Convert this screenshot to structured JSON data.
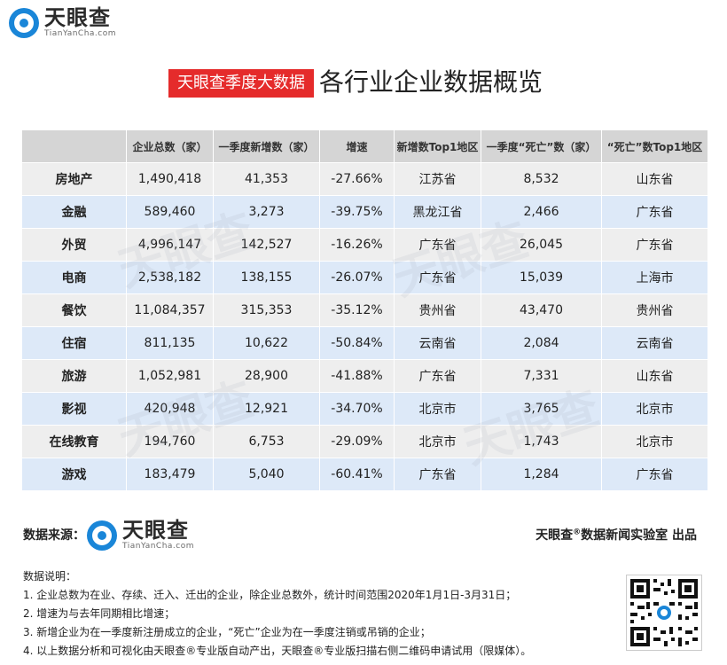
{
  "brand": {
    "name": "天眼查",
    "sub": "TianYanCha.com"
  },
  "title": {
    "badge": "天眼查季度大数据",
    "main": "各行业企业数据概览"
  },
  "table": {
    "headers": [
      "",
      "企业总数（家）",
      "一季度新增数（家）",
      "增速",
      "新增数Top1地区",
      "一季度“死亡”数（家）",
      "“死亡”数Top1地区"
    ],
    "rows": [
      [
        "房地产",
        "1,490,418",
        "41,353",
        "-27.66%",
        "江苏省",
        "8,532",
        "山东省"
      ],
      [
        "金融",
        "589,460",
        "3,273",
        "-39.75%",
        "黑龙江省",
        "2,466",
        "广东省"
      ],
      [
        "外贸",
        "4,996,147",
        "142,527",
        "-16.26%",
        "广东省",
        "26,045",
        "广东省"
      ],
      [
        "电商",
        "2,538,182",
        "138,155",
        "-26.07%",
        "广东省",
        "15,039",
        "上海市"
      ],
      [
        "餐饮",
        "11,084,357",
        "315,353",
        "-35.12%",
        "贵州省",
        "43,470",
        "贵州省"
      ],
      [
        "住宿",
        "811,135",
        "10,622",
        "-50.84%",
        "云南省",
        "2,084",
        "云南省"
      ],
      [
        "旅游",
        "1,052,981",
        "28,900",
        "-41.88%",
        "广东省",
        "7,331",
        "山东省"
      ],
      [
        "影视",
        "420,948",
        "12,921",
        "-34.70%",
        "北京市",
        "3,765",
        "北京市"
      ],
      [
        "在线教育",
        "194,760",
        "6,753",
        "-29.09%",
        "北京市",
        "1,743",
        "北京市"
      ],
      [
        "游戏",
        "183,479",
        "5,040",
        "-60.41%",
        "广东省",
        "1,284",
        "广东省"
      ]
    ]
  },
  "footer": {
    "source_label": "数据来源：",
    "credit_a": "天眼查",
    "credit_reg": "®",
    "credit_b": "数据新闻实验室 出品"
  },
  "notes": {
    "heading": "数据说明：",
    "items": [
      "1. 企业总数为在业、存续、迁入、迁出的企业，除企业总数外，统计时间范围2020年1月1日-3月31日；",
      "2. 增速为与去年同期相比增速；",
      "3. 新增企业为在一季度新注册成立的企业，“死亡”企业为在一季度注销或吊销的企业；",
      "4. 以上数据分析和可视化由天眼查®专业版自动产出，天眼查®专业版扫描右侧二维码申请试用（限媒体）。"
    ]
  },
  "colors": {
    "badge_bg": "#e52b2b",
    "header_bg": "#d5d5d5",
    "row_odd": "#eeeeee",
    "row_even": "#dde9f8",
    "brand_blue": "#1a86d8"
  }
}
